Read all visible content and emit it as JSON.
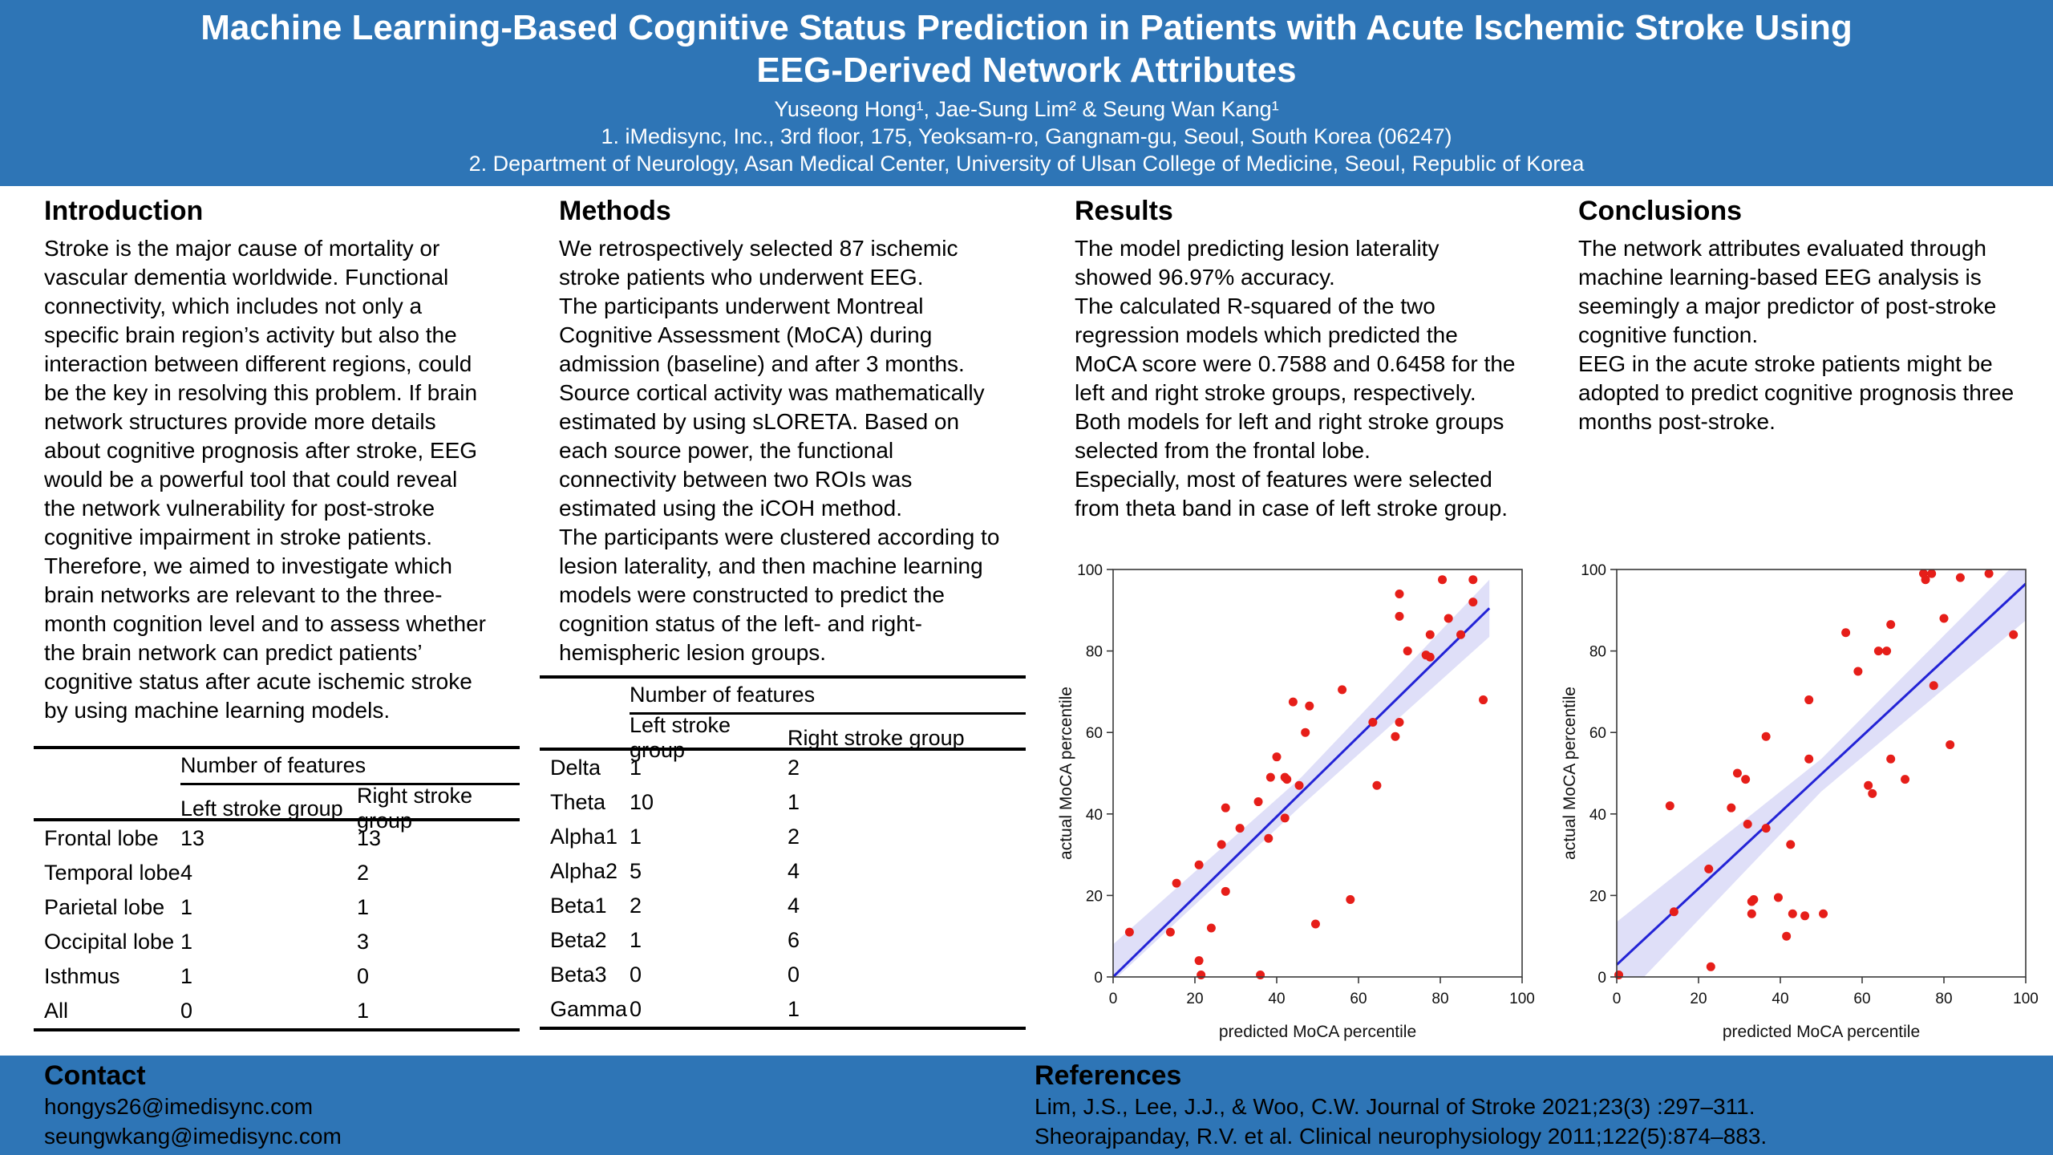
{
  "brand": {
    "blue": "#2e75b6"
  },
  "header": {
    "title_line1": "Machine Learning-Based Cognitive Status Prediction in Patients with Acute Ischemic Stroke Using",
    "title_line2": "EEG-Derived Network Attributes",
    "authors": "Yuseong Hong¹, Jae-Sung Lim² & Seung Wan Kang¹",
    "affiliation1": "1. iMedisync, Inc., 3rd floor, 175, Yeoksam-ro, Gangnam-gu, Seoul, South Korea (06247)",
    "affiliation2": "2. Department of Neurology, Asan Medical Center, University of Ulsan College of Medicine, Seoul, Republic of Korea"
  },
  "sections": {
    "introduction": {
      "heading": "Introduction",
      "body": "Stroke is the major cause of mortality or\nvascular dementia worldwide. Functional\nconnectivity, which includes not only a\nspecific brain region’s activity but also the\ninteraction between different regions, could\nbe the key in resolving this problem. If brain\nnetwork structures provide more details\nabout cognitive prognosis after stroke, EEG\nwould be a powerful tool that could reveal\nthe network vulnerability for post-stroke\ncognitive impairment in stroke patients.\nTherefore, we aimed to investigate which\nbrain networks are relevant to the three-\nmonth cognition level and to assess whether\nthe brain network can predict patients’\ncognitive status after acute ischemic stroke\nby using machine learning models."
    },
    "methods": {
      "heading": "Methods",
      "body": "We retrospectively selected 87 ischemic\nstroke patients who underwent EEG.\nThe participants underwent Montreal\nCognitive Assessment (MoCA) during\nadmission (baseline) and after 3 months.\nSource cortical activity was mathematically\nestimated by using sLORETA. Based on\neach source power, the functional\nconnectivity between two ROIs was\nestimated using the iCOH method.\nThe participants were clustered according to\nlesion laterality, and then machine learning\nmodels were constructed to predict the\ncognition status of the left- and right-\nhemispheric lesion groups."
    },
    "results": {
      "heading": "Results",
      "body": "The model predicting lesion laterality\nshowed 96.97% accuracy.\nThe calculated R-squared of the two\nregression models which predicted the\nMoCA score were 0.7588 and 0.6458 for the\nleft and right stroke groups, respectively.\nBoth models for left and right stroke groups\nselected from the frontal lobe.\nEspecially, most of features were selected\nfrom theta band in case of left stroke group."
    },
    "conclusions": {
      "heading": "Conclusions",
      "body": "The network attributes evaluated through\nmachine learning-based EEG analysis is\nseemingly a major predictor of post-stroke\ncognitive function.\nEEG in the acute stroke patients might be\nadopted to predict cognitive prognosis three\nmonths post-stroke."
    }
  },
  "tables": {
    "regions": {
      "group_header": "Number of features",
      "columns": [
        "Left stroke group",
        "Right stroke group"
      ],
      "rows": [
        [
          "Frontal lobe",
          "13",
          "13"
        ],
        [
          "Temporal lobe",
          "4",
          "2"
        ],
        [
          "Parietal lobe",
          "1",
          "1"
        ],
        [
          "Occipital lobe",
          "1",
          "3"
        ],
        [
          "Isthmus",
          "1",
          "0"
        ],
        [
          "All",
          "0",
          "1"
        ]
      ]
    },
    "bands": {
      "group_header": "Number of features",
      "columns": [
        "Left stroke group",
        "Right stroke group"
      ],
      "rows": [
        [
          "Delta",
          "1",
          "2"
        ],
        [
          "Theta",
          "10",
          "1"
        ],
        [
          "Alpha1",
          "1",
          "2"
        ],
        [
          "Alpha2",
          "5",
          "4"
        ],
        [
          "Beta1",
          "2",
          "4"
        ],
        [
          "Beta2",
          "1",
          "6"
        ],
        [
          "Beta3",
          "0",
          "0"
        ],
        [
          "Gamma",
          "0",
          "1"
        ]
      ]
    }
  },
  "footer": {
    "contact_heading": "Contact",
    "emails": [
      "hongys26@imedisync.com",
      "seungwkang@imedisync.com"
    ],
    "references_heading": "References",
    "references": [
      "Lim, J.S., Lee, J.J., & Woo, C.W. Journal of Stroke 2021;23(3) :297–311.",
      "Sheorajpanday, R.V. et al. Clinical neurophysiology 2011;122(5):874–883."
    ]
  },
  "chart_data": [
    {
      "type": "scatter",
      "xlabel": "predicted MoCA percentile",
      "ylabel": "actual MoCA percentile",
      "xlim": [
        0,
        100
      ],
      "ylim": [
        0,
        100
      ],
      "xticks": [
        0,
        20,
        40,
        60,
        80,
        100
      ],
      "yticks": [
        0,
        20,
        40,
        60,
        80,
        100
      ],
      "grid": false,
      "legend": "none",
      "point_color": "#e61e19",
      "line_color": "#2323d6",
      "band_color": "#c9c9f3",
      "regression_line": {
        "x1": 0,
        "y1": 0,
        "x2": 92,
        "y2": 90.5
      },
      "band_upper": [
        [
          0,
          8
        ],
        [
          46,
          49
        ],
        [
          92,
          97.5
        ]
      ],
      "band_lower": [
        [
          0,
          -1
        ],
        [
          46,
          42
        ],
        [
          92,
          83.5
        ]
      ],
      "points": [
        [
          4,
          11
        ],
        [
          14,
          11
        ],
        [
          15.5,
          23
        ],
        [
          21,
          27.5
        ],
        [
          21,
          4
        ],
        [
          21.5,
          0.5
        ],
        [
          24,
          12
        ],
        [
          26.5,
          32.5
        ],
        [
          27.5,
          41.5
        ],
        [
          27.5,
          21
        ],
        [
          31,
          36.5
        ],
        [
          35.5,
          43
        ],
        [
          36,
          0.5
        ],
        [
          38,
          34
        ],
        [
          38.5,
          49
        ],
        [
          40,
          54
        ],
        [
          42,
          39
        ],
        [
          42,
          49
        ],
        [
          42.5,
          48.5
        ],
        [
          44,
          67.5
        ],
        [
          45.5,
          47
        ],
        [
          47,
          60
        ],
        [
          48,
          66.5
        ],
        [
          49.5,
          13
        ],
        [
          56,
          70.5
        ],
        [
          58,
          19
        ],
        [
          63.5,
          62.5
        ],
        [
          64.5,
          47
        ],
        [
          69,
          59
        ],
        [
          70,
          62.5
        ],
        [
          70,
          88.5
        ],
        [
          70,
          94
        ],
        [
          72,
          80
        ],
        [
          76.5,
          79
        ],
        [
          77.5,
          78.5
        ],
        [
          77.5,
          84
        ],
        [
          80.5,
          97.5
        ],
        [
          82,
          88
        ],
        [
          85,
          84
        ],
        [
          88,
          92
        ],
        [
          88,
          97.5
        ],
        [
          90.5,
          68
        ]
      ]
    },
    {
      "type": "scatter",
      "xlabel": "predicted MoCA percentile",
      "ylabel": "actual MoCA percentile",
      "xlim": [
        0,
        100
      ],
      "ylim": [
        0,
        100
      ],
      "xticks": [
        0,
        20,
        40,
        60,
        80,
        100
      ],
      "yticks": [
        0,
        20,
        40,
        60,
        80,
        100
      ],
      "grid": false,
      "legend": "none",
      "point_color": "#e61e19",
      "line_color": "#2323d6",
      "band_color": "#c9c9f3",
      "regression_line": {
        "x1": 0,
        "y1": 3,
        "x2": 100,
        "y2": 96.5
      },
      "band_upper": [
        [
          0,
          13.5
        ],
        [
          50,
          53.5
        ],
        [
          100,
          104
        ]
      ],
      "band_lower": [
        [
          0,
          -7
        ],
        [
          50,
          45.5
        ],
        [
          100,
          87.5
        ]
      ],
      "points": [
        [
          0.5,
          0.5
        ],
        [
          13,
          42
        ],
        [
          14,
          16
        ],
        [
          22.5,
          26.5
        ],
        [
          23,
          2.5
        ],
        [
          28,
          41.5
        ],
        [
          29.5,
          50
        ],
        [
          31.5,
          48.5
        ],
        [
          32,
          37.5
        ],
        [
          33,
          15.5
        ],
        [
          33,
          18.5
        ],
        [
          33.5,
          19
        ],
        [
          36.5,
          36.5
        ],
        [
          36.5,
          59
        ],
        [
          39.5,
          19.5
        ],
        [
          41.5,
          10
        ],
        [
          42.5,
          32.5
        ],
        [
          43,
          15.5
        ],
        [
          46,
          15
        ],
        [
          47,
          53.5
        ],
        [
          47,
          68
        ],
        [
          50.5,
          15.5
        ],
        [
          56,
          84.5
        ],
        [
          59,
          75
        ],
        [
          61.5,
          47
        ],
        [
          62.5,
          45
        ],
        [
          64,
          80
        ],
        [
          66,
          80
        ],
        [
          67,
          53.5
        ],
        [
          67,
          86.5
        ],
        [
          70.5,
          48.5
        ],
        [
          75,
          99
        ],
        [
          75.5,
          97.5
        ],
        [
          77,
          99
        ],
        [
          77.5,
          71.5
        ],
        [
          80,
          88
        ],
        [
          81.5,
          57
        ],
        [
          84,
          98
        ],
        [
          91,
          99
        ],
        [
          97,
          84
        ]
      ]
    }
  ]
}
